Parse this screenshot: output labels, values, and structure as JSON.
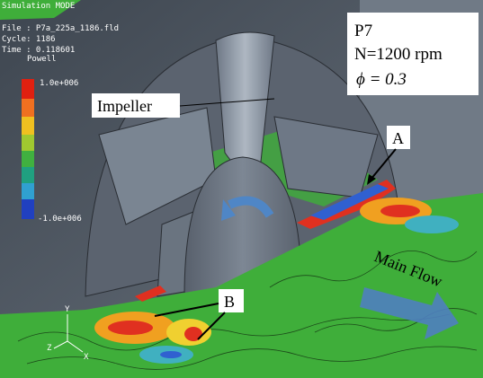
{
  "header": {
    "mode": "Simulation MODE",
    "file": "File : P7a_225a_1186.fld",
    "cycle": "Cycle: 1186",
    "time": "Time : 0.118601",
    "variable": "Powell"
  },
  "colorbar": {
    "max_label": "1.0e+006",
    "min_label": "-1.0e+006"
  },
  "conditions": {
    "case": "P7",
    "speed": "N=1200 rpm",
    "flow_coefficient": "ϕ  = 0.3"
  },
  "labels": {
    "impeller": "Impeller",
    "a": "A",
    "b": "B",
    "main_flow": "Main Flow"
  },
  "axes": {
    "y": "Y",
    "z": "Z",
    "x": "X"
  }
}
